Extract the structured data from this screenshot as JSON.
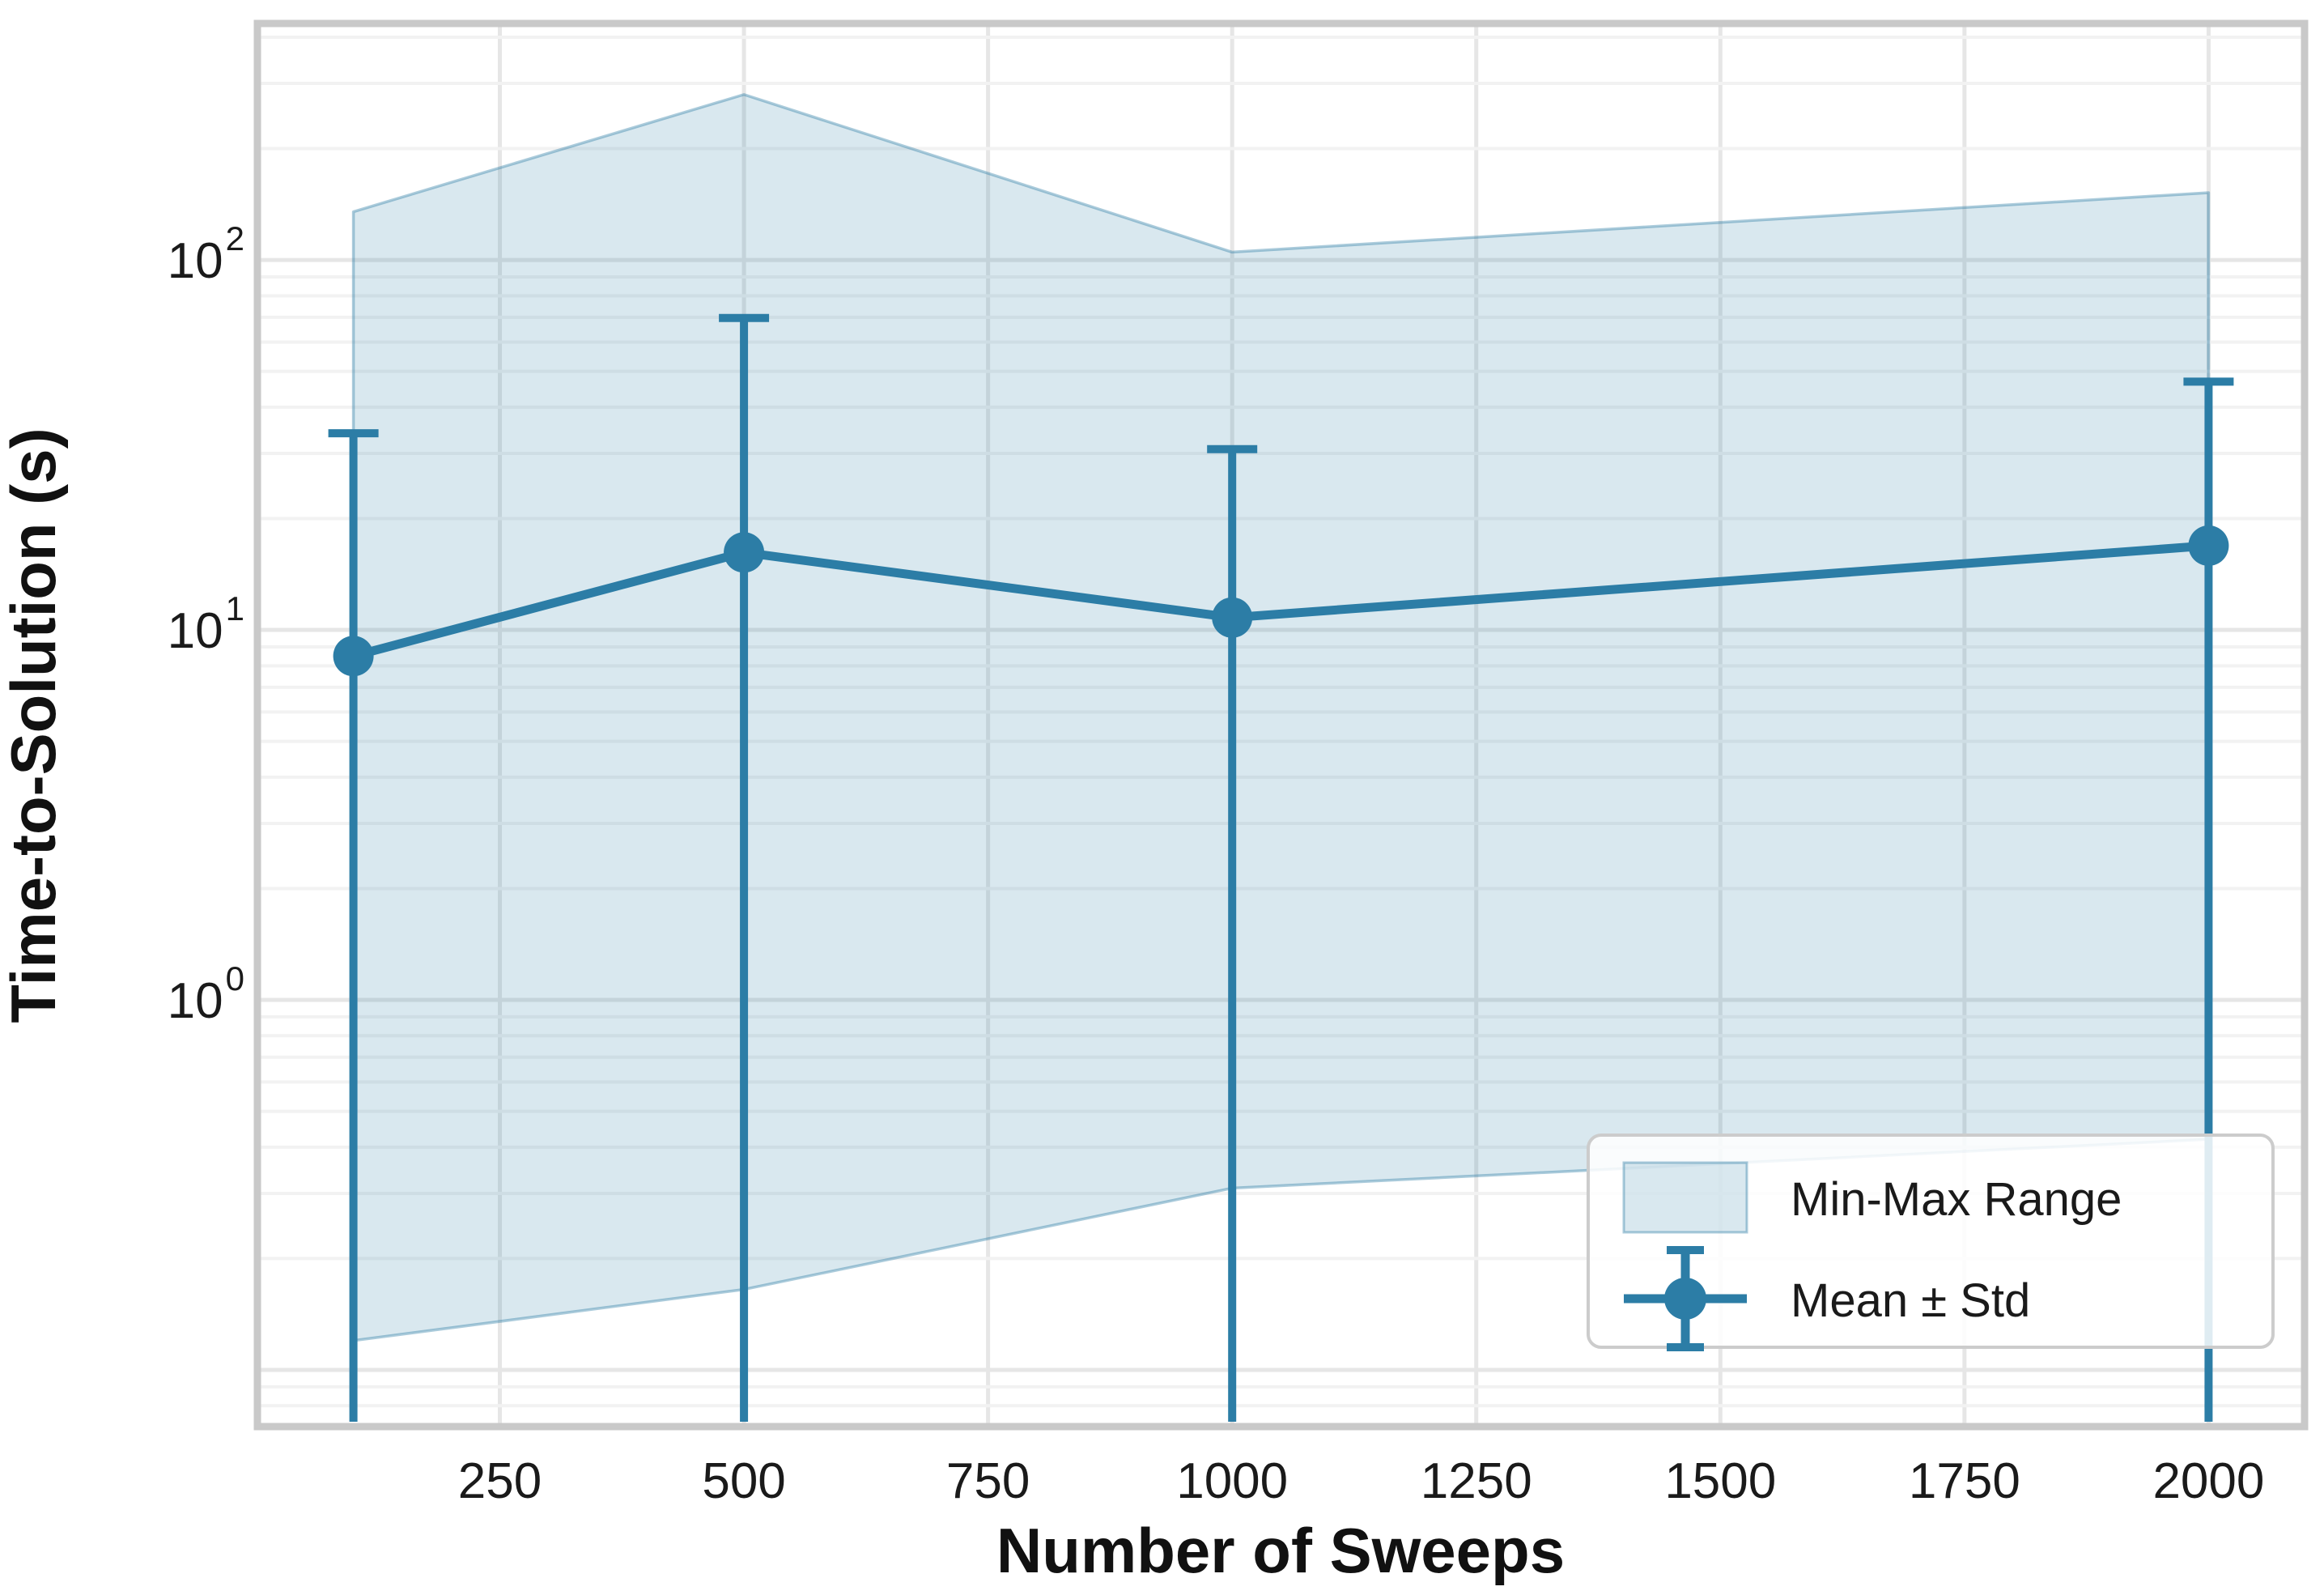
{
  "figure": {
    "background": "#ffffff"
  },
  "chart_data": {
    "type": "line",
    "title": "",
    "xlabel": "Number of Sweeps",
    "ylabel": "Time-to-Solution (s)",
    "x": [
      100,
      500,
      1000,
      2000
    ],
    "series": [
      {
        "name": "Min-Max Range",
        "style": "band",
        "min": [
          0.12,
          0.165,
          0.31,
          0.42
        ],
        "max": [
          135,
          280,
          105,
          152
        ]
      },
      {
        "name": "Mean ± Std",
        "style": "line-errorbar",
        "mean": [
          8.5,
          16.2,
          10.8,
          16.9
        ],
        "std": [
          25.5,
          53.5,
          20,
          30
        ],
        "upper_bounds": [
          34,
          70,
          31,
          47
        ],
        "lower_error_clipped": true
      }
    ],
    "xticks": [
      250,
      500,
      750,
      1000,
      1250,
      1500,
      1750,
      2000
    ],
    "yticks_exponents": [
      0,
      1,
      2
    ],
    "xlim": [
      5,
      2095
    ],
    "ylim": [
      0.0717,
      427
    ],
    "xaxis_scale": "linear",
    "yaxis_scale": "log",
    "grid": "major+minor",
    "legend": {
      "position": "lower right",
      "items": [
        {
          "label": "Min-Max Range",
          "marker": "patch"
        },
        {
          "label": "Mean ± Std",
          "marker": "errorbar"
        }
      ]
    },
    "colors": {
      "line": "#2c7da6",
      "band_fill": "rgba(45, 125, 166, 0.18)",
      "band_edge": "rgba(45, 125, 166, 0.40)",
      "grid_major": "#e6e6e6",
      "grid_minor": "#f2f2f2",
      "spine": "#c9c9c9",
      "text": "#1a1a1a"
    }
  }
}
